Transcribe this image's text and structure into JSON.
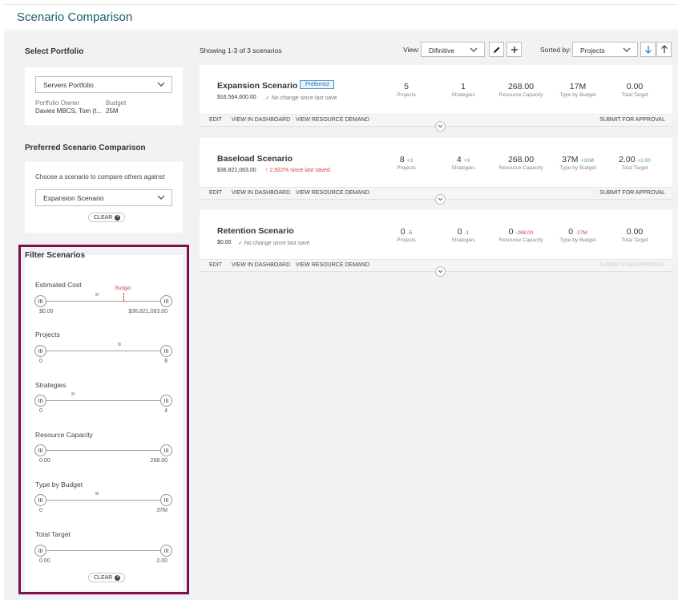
{
  "page": {
    "title": "Scenario Comparison"
  },
  "portfolio": {
    "section_title": "Select Portfolio",
    "selected": "Servers Portfolio",
    "owner_label": "Portfolio Owner",
    "owner_value": "Davies MBCS, Tom (t...",
    "budget_label": "Budget",
    "budget_value": "25M"
  },
  "preferred": {
    "section_title": "Preferred Scenario Comparison",
    "prompt": "Choose a scenario to compare others against",
    "selected": "Expansion Scenario",
    "clear_label": "CLEAR"
  },
  "filters": {
    "section_title": "Filter Scenarios",
    "budget_marker_label": "Budget",
    "clear_label": "CLEAR",
    "items": [
      {
        "label": "Estimated Cost",
        "min": "$0.00",
        "max": "$36,821,063.00"
      },
      {
        "label": "Projects",
        "min": "0",
        "max": "8"
      },
      {
        "label": "Strategies",
        "min": "0",
        "max": "4"
      },
      {
        "label": "Resource Capacity",
        "min": "0.00",
        "max": "268.00"
      },
      {
        "label": "Type by Budget",
        "min": "0",
        "max": "37M"
      },
      {
        "label": "Total Target",
        "min": "0.00",
        "max": "2.00"
      }
    ]
  },
  "toolbar": {
    "showing": "Showing 1-3 of 3 scenarios",
    "view_label": "View:",
    "view_value": "Difinitive",
    "sorted_label": "Sorted by:",
    "sorted_value": "Projects"
  },
  "metric_labels": [
    "Projects",
    "Strategies",
    "Resource Capacity",
    "Type by Budget",
    "Total Target"
  ],
  "actions": {
    "edit": "EDIT",
    "dashboard": "VIEW IN DASHBOARD",
    "demand": "VIEW RESOURCE DEMAND",
    "submit": "SUBMIT FOR APPROVAL"
  },
  "scenarios": [
    {
      "name": "Expansion Scenario",
      "badge": "Preferred",
      "cost": "$16,564,600.00",
      "change": "No change since last save",
      "metrics": [
        {
          "value": "5",
          "delta": ""
        },
        {
          "value": "1",
          "delta": ""
        },
        {
          "value": "268.00",
          "delta": ""
        },
        {
          "value": "17M",
          "delta": ""
        },
        {
          "value": "0.00",
          "delta": ""
        }
      ]
    },
    {
      "name": "Baseload Scenario",
      "badge": "",
      "cost": "$36,821,063.00",
      "change": "2,922% since last saved",
      "metrics": [
        {
          "value": "8",
          "delta": "+3"
        },
        {
          "value": "4",
          "delta": "+3"
        },
        {
          "value": "268.00",
          "delta": ""
        },
        {
          "value": "37M",
          "delta": "+20M"
        },
        {
          "value": "2.00",
          "delta": "+2.00"
        }
      ]
    },
    {
      "name": "Retention Scenario",
      "badge": "",
      "cost": "$0.00",
      "change": "No change since last save",
      "metrics": [
        {
          "value": "0",
          "delta": "-5"
        },
        {
          "value": "0",
          "delta": "-1"
        },
        {
          "value": "0",
          "delta": "-268.00"
        },
        {
          "value": "0",
          "delta": "-17M"
        },
        {
          "value": "0.00",
          "delta": ""
        }
      ]
    }
  ],
  "colors": {
    "accent": "#1d5a6e",
    "highlight_outline": "#7d1148",
    "positive": "#46a84a",
    "negative": "#d23f3f",
    "budget_marker": "#d23f3f"
  }
}
